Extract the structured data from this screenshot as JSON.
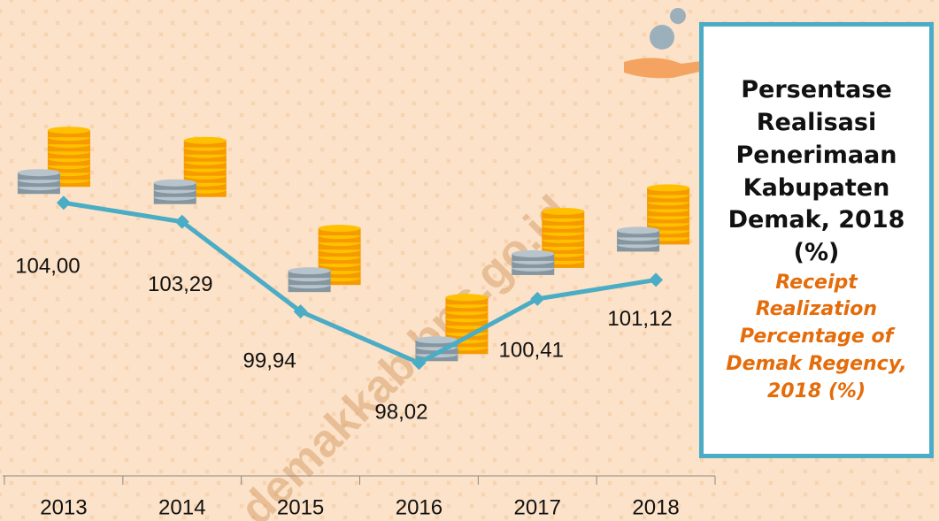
{
  "chart_data": {
    "type": "line",
    "title": "Persentase Realisasi Penerimaan Kabupaten Demak, 2018 (%)",
    "subtitle": "Receipt Realization Percentage of Demak Regency, 2018 (%)",
    "watermark": "demakkab.bps.go.id",
    "categories": [
      "2013",
      "2014",
      "2015",
      "2016",
      "2017",
      "2018"
    ],
    "values": [
      104.0,
      103.29,
      99.94,
      98.02,
      100.41,
      101.12
    ],
    "value_labels": [
      "104,00",
      "103,29",
      "99,94",
      "98,02",
      "100,41",
      "101,12"
    ],
    "color": "#4bacc6",
    "ylim": [
      94,
      112
    ]
  }
}
